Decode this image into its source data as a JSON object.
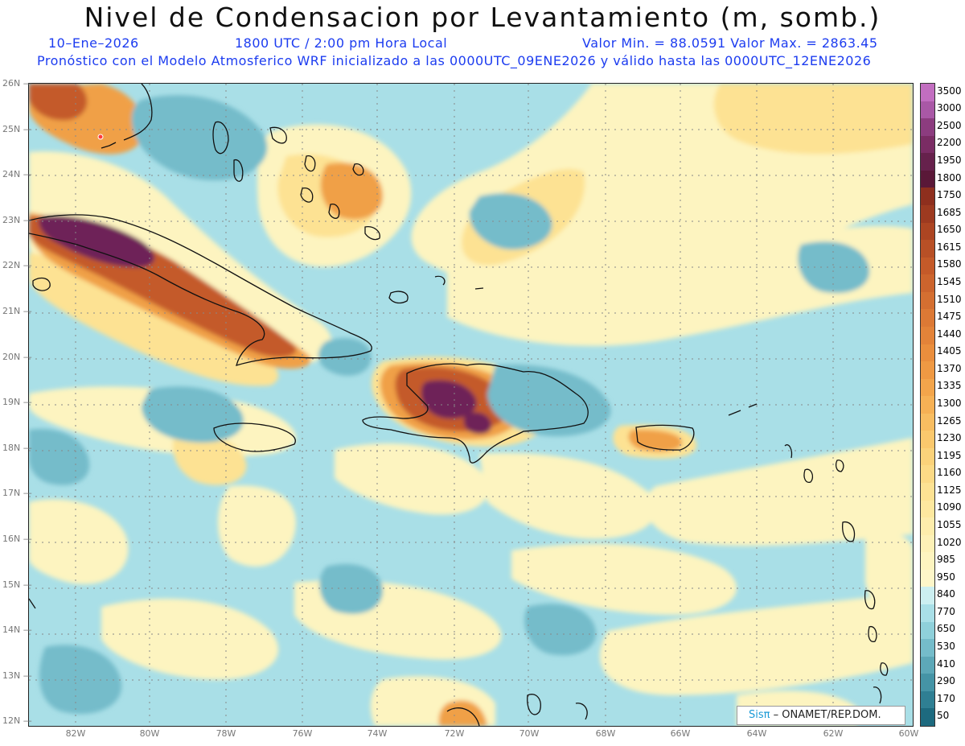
{
  "title": "Nivel de Condensacion por Levantamiento (m, somb.)",
  "date": "10–Ene–2026",
  "time": "1800 UTC / 2:00 pm Hora Local",
  "minmax": "Valor Min. = 88.0591   Valor Max. = 2863.45",
  "forecast_line": "Pronóstico con el Modelo Atmosferico WRF inicializado a las 0000UTC_09ENE2026 y válido hasta las  0000UTC_12ENE2026",
  "lat_labels": [
    "26N",
    "25N",
    "24N",
    "23N",
    "22N",
    "21N",
    "20N",
    "19N",
    "18N",
    "17N",
    "16N",
    "15N",
    "14N",
    "13N",
    "12N"
  ],
  "lon_labels": [
    "82W",
    "80W",
    "78W",
    "76W",
    "74W",
    "72W",
    "70W",
    "68W",
    "66W",
    "64W",
    "62W",
    "60W"
  ],
  "legend": {
    "labels": [
      "3500",
      "3000",
      "2500",
      "2200",
      "1950",
      "1800",
      "1750",
      "1685",
      "1650",
      "1615",
      "1580",
      "1545",
      "1510",
      "1475",
      "1440",
      "1405",
      "1370",
      "1335",
      "1300",
      "1265",
      "1230",
      "1195",
      "1160",
      "1125",
      "1090",
      "1055",
      "1020",
      "985",
      "950",
      "840",
      "770",
      "650",
      "530",
      "410",
      "290",
      "170",
      "50"
    ],
    "colors": [
      "#c26ec0",
      "#a958a6",
      "#8c3c7f",
      "#7a2c64",
      "#66214c",
      "#5a1838",
      "#8e2f1e",
      "#9d3a20",
      "#ac4522",
      "#b85026",
      "#c45a29",
      "#cc642d",
      "#d46f31",
      "#dc7935",
      "#e38339",
      "#ea8e3d",
      "#ef9943",
      "#f3a54b",
      "#f6b155",
      "#f8bd61",
      "#fac86d",
      "#fbd27a",
      "#fcda86",
      "#fde293",
      "#fde89f",
      "#fdedac",
      "#fdf1b7",
      "#fdf4c0",
      "#fdf6c9",
      "#cceff1",
      "#a9dfe7",
      "#8fd0da",
      "#75bcca",
      "#5da8b8",
      "#4594a6",
      "#2f7f93",
      "#1d6a7f"
    ]
  },
  "credit": {
    "brand": "Sisπ",
    "org": "–  ONAMET/REP.DOM."
  }
}
